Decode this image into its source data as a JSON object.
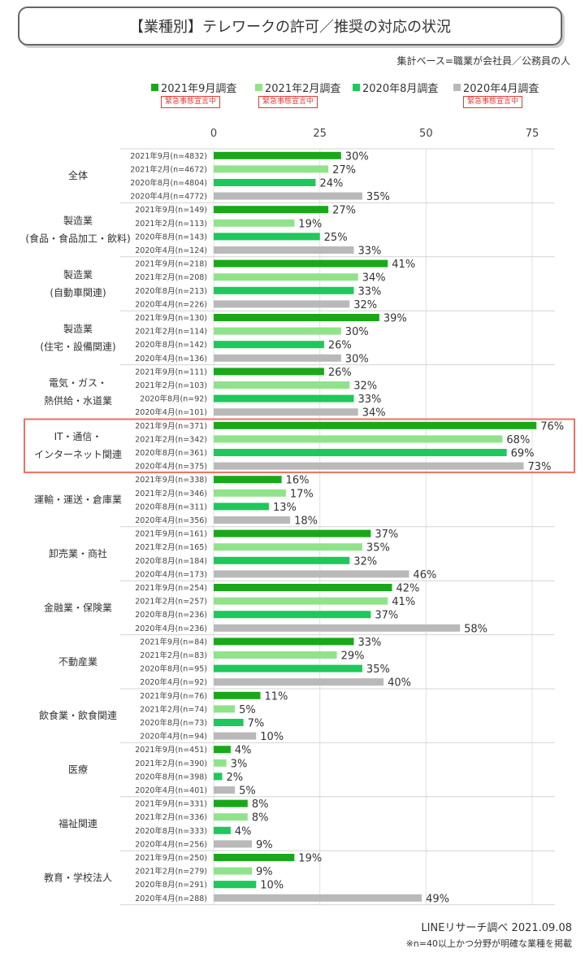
{
  "header": {
    "title": "【業種別】テレワークの許可／推奨の対応の状況",
    "subtitle": "集計ベース=職業が会社員／公務員の人"
  },
  "legend": [
    {
      "name": "2021年9月調査",
      "color": "#1aa81a",
      "badge": "緊急事態宣言中"
    },
    {
      "name": "2021年2月調査",
      "color": "#90e38a",
      "badge": "緊急事態宣言中"
    },
    {
      "name": "2020年8月調査",
      "color": "#1ec85a",
      "badge": ""
    },
    {
      "name": "2020年4月調査",
      "color": "#b9b9b9",
      "badge": "緊急事態宣言中"
    }
  ],
  "chart_data": {
    "type": "bar",
    "orientation": "horizontal",
    "xlim": [
      0,
      75
    ],
    "xticks": [
      "0",
      "25",
      "50",
      "75"
    ],
    "grid": true,
    "highlight_group": "IT・通信・\nインターネット関連",
    "highlight_color": "#f07060",
    "series_colors": [
      "#1aa81a",
      "#90e38a",
      "#1ec85a",
      "#b9b9b9"
    ],
    "groups": [
      {
        "name": "全体",
        "bars": [
          {
            "label": "2021年9月(n=4832)",
            "value": 30
          },
          {
            "label": "2021年2月(n=4672)",
            "value": 27
          },
          {
            "label": "2020年8月(n=4804)",
            "value": 24
          },
          {
            "label": "2020年4月(n=4772)",
            "value": 35
          }
        ]
      },
      {
        "name": "製造業\n(食品・食品加工・飲料)",
        "bars": [
          {
            "label": "2021年9月(n=149)",
            "value": 27
          },
          {
            "label": "2021年2月(n=113)",
            "value": 19
          },
          {
            "label": "2020年8月(n=143)",
            "value": 25
          },
          {
            "label": "2020年4月(n=124)",
            "value": 33
          }
        ]
      },
      {
        "name": "製造業\n(自動車関連)",
        "bars": [
          {
            "label": "2021年9月(n=218)",
            "value": 41
          },
          {
            "label": "2021年2月(n=208)",
            "value": 34
          },
          {
            "label": "2020年8月(n=213)",
            "value": 33
          },
          {
            "label": "2020年4月(n=226)",
            "value": 32
          }
        ]
      },
      {
        "name": "製造業\n(住宅・設備関連)",
        "bars": [
          {
            "label": "2021年9月(n=130)",
            "value": 39
          },
          {
            "label": "2021年2月(n=114)",
            "value": 30
          },
          {
            "label": "2020年8月(n=142)",
            "value": 26
          },
          {
            "label": "2020年4月(n=136)",
            "value": 30
          }
        ]
      },
      {
        "name": "電気・ガス・\n熱供給・水道業",
        "bars": [
          {
            "label": "2021年9月(n=111)",
            "value": 26
          },
          {
            "label": "2021年2月(n=103)",
            "value": 32
          },
          {
            "label": "2020年8月(n=92)",
            "value": 33
          },
          {
            "label": "2020年4月(n=101)",
            "value": 34
          }
        ]
      },
      {
        "name": "IT・通信・\nインターネット関連",
        "bars": [
          {
            "label": "2021年9月(n=371)",
            "value": 76
          },
          {
            "label": "2021年2月(n=342)",
            "value": 68
          },
          {
            "label": "2020年8月(n=361)",
            "value": 69
          },
          {
            "label": "2020年4月(n=375)",
            "value": 73
          }
        ]
      },
      {
        "name": "運輸・運送・倉庫業",
        "bars": [
          {
            "label": "2021年9月(n=338)",
            "value": 16
          },
          {
            "label": "2021年2月(n=346)",
            "value": 17
          },
          {
            "label": "2020年8月(n=311)",
            "value": 13
          },
          {
            "label": "2020年4月(n=356)",
            "value": 18
          }
        ]
      },
      {
        "name": "卸売業・商社",
        "bars": [
          {
            "label": "2021年9月(n=161)",
            "value": 37
          },
          {
            "label": "2021年2月(n=165)",
            "value": 35
          },
          {
            "label": "2020年8月(n=184)",
            "value": 32
          },
          {
            "label": "2020年4月(n=173)",
            "value": 46
          }
        ]
      },
      {
        "name": "金融業・保険業",
        "bars": [
          {
            "label": "2021年9月(n=254)",
            "value": 42
          },
          {
            "label": "2021年2月(n=257)",
            "value": 41
          },
          {
            "label": "2020年8月(n=236)",
            "value": 37
          },
          {
            "label": "2020年4月(n=236)",
            "value": 58
          }
        ]
      },
      {
        "name": "不動産業",
        "bars": [
          {
            "label": "2021年9月(n=84)",
            "value": 33
          },
          {
            "label": "2021年2月(n=83)",
            "value": 29
          },
          {
            "label": "2020年8月(n=95)",
            "value": 35
          },
          {
            "label": "2020年4月(n=92)",
            "value": 40
          }
        ]
      },
      {
        "name": "飲食業・飲食関連",
        "bars": [
          {
            "label": "2021年9月(n=76)",
            "value": 11
          },
          {
            "label": "2021年2月(n=74)",
            "value": 5
          },
          {
            "label": "2020年8月(n=73)",
            "value": 7
          },
          {
            "label": "2020年4月(n=94)",
            "value": 10
          }
        ]
      },
      {
        "name": "医療",
        "bars": [
          {
            "label": "2021年9月(n=451)",
            "value": 4
          },
          {
            "label": "2021年2月(n=390)",
            "value": 3
          },
          {
            "label": "2020年8月(n=398)",
            "value": 2
          },
          {
            "label": "2020年4月(n=401)",
            "value": 5
          }
        ]
      },
      {
        "name": "福祉関連",
        "bars": [
          {
            "label": "2021年9月(n=331)",
            "value": 8
          },
          {
            "label": "2021年2月(n=336)",
            "value": 8
          },
          {
            "label": "2020年8月(n=333)",
            "value": 4
          },
          {
            "label": "2020年4月(n=256)",
            "value": 9
          }
        ]
      },
      {
        "name": "教育・学校法人",
        "bars": [
          {
            "label": "2021年9月(n=250)",
            "value": 19
          },
          {
            "label": "2021年2月(n=279)",
            "value": 9
          },
          {
            "label": "2020年8月(n=291)",
            "value": 10
          },
          {
            "label": "2020年4月(n=288)",
            "value": 49
          }
        ]
      }
    ]
  },
  "footer": {
    "source": "LINEリサーチ調べ 2021.09.08",
    "note": "※n=40以上かつ分野が明確な業種を掲載"
  }
}
